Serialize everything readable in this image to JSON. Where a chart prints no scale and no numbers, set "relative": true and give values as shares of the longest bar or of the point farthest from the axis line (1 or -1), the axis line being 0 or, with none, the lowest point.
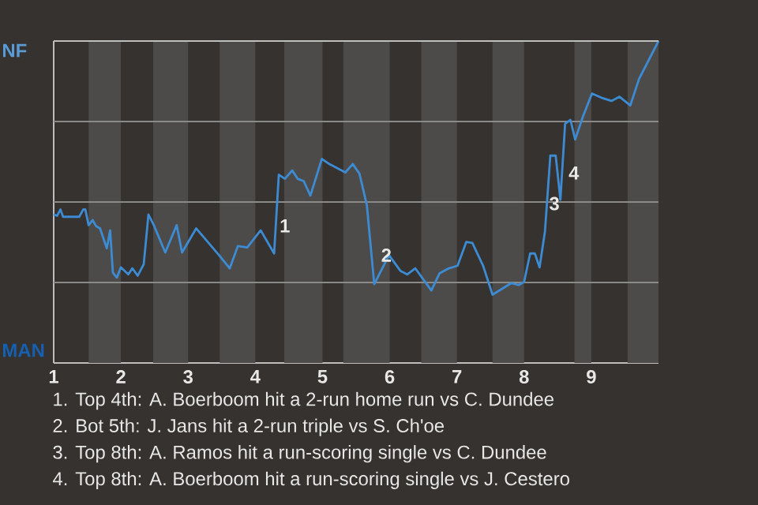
{
  "chart_data": {
    "type": "line",
    "relative": true,
    "x": [
      1,
      1.05,
      1.1,
      1.14,
      1.38,
      1.44,
      1.47,
      1.52,
      1.58,
      1.63,
      1.69,
      1.79,
      1.84,
      1.88,
      1.94,
      2,
      2.11,
      2.17,
      2.25,
      2.34,
      2.41,
      2.49,
      2.66,
      2.83,
      2.91,
      3.12,
      3.46,
      3.62,
      3.74,
      3.88,
      4.08,
      4.18,
      4.28,
      4.35,
      4.44,
      4.55,
      4.63,
      4.72,
      4.82,
      4.99,
      5.1,
      5.34,
      5.45,
      5.55,
      5.66,
      5.77,
      5.87,
      5.99,
      6.16,
      6.26,
      6.38,
      6.62,
      6.74,
      6.88,
      7.01,
      7.14,
      7.23,
      7.39,
      7.53,
      7.81,
      7.92,
      8,
      8.09,
      8.16,
      8.23,
      8.31,
      8.39,
      8.47,
      8.54,
      8.61,
      8.69,
      8.76,
      8.88,
      9.01,
      9.15,
      9.3,
      9.42,
      9.58,
      9.71,
      10
    ],
    "values": [
      0.461,
      0.457,
      0.477,
      0.454,
      0.454,
      0.477,
      0.477,
      0.428,
      0.444,
      0.425,
      0.418,
      0.356,
      0.412,
      0.281,
      0.265,
      0.297,
      0.275,
      0.294,
      0.271,
      0.307,
      0.461,
      0.428,
      0.343,
      0.428,
      0.343,
      0.418,
      0.335,
      0.294,
      0.363,
      0.359,
      0.412,
      0.376,
      0.34,
      0.585,
      0.572,
      0.598,
      0.572,
      0.565,
      0.52,
      0.634,
      0.618,
      0.592,
      0.618,
      0.588,
      0.49,
      0.245,
      0.286,
      0.335,
      0.286,
      0.275,
      0.294,
      0.225,
      0.278,
      0.294,
      0.302,
      0.376,
      0.373,
      0.302,
      0.212,
      0.248,
      0.242,
      0.252,
      0.34,
      0.34,
      0.297,
      0.408,
      0.644,
      0.644,
      0.507,
      0.743,
      0.755,
      0.694,
      0.768,
      0.837,
      0.824,
      0.814,
      0.827,
      0.8,
      0.882,
      1
    ],
    "color": "#3d8bd3",
    "line_style": "solid",
    "marker": "none",
    "xlim": [
      1,
      10
    ],
    "xticks": [
      1,
      2,
      3,
      4,
      5,
      6,
      7,
      8,
      9
    ],
    "bands": [
      {
        "axis": "x",
        "from": 1.52,
        "to": 2,
        "color": "#4d4b49"
      },
      {
        "axis": "x",
        "from": 2.48,
        "to": 3,
        "color": "#4d4b49"
      },
      {
        "axis": "x",
        "from": 3.47,
        "to": 4,
        "color": "#4d4b49"
      },
      {
        "axis": "x",
        "from": 4.43,
        "to": 5,
        "color": "#4d4b49"
      },
      {
        "axis": "x",
        "from": 5.31,
        "to": 6,
        "color": "#4d4b49"
      },
      {
        "axis": "x",
        "from": 6.47,
        "to": 7,
        "color": "#4d4b49"
      },
      {
        "axis": "x",
        "from": 7.53,
        "to": 8,
        "color": "#4d4b49"
      },
      {
        "axis": "x",
        "from": 8.75,
        "to": 9,
        "color": "#4d4b49"
      },
      {
        "axis": "x",
        "from": 9.54,
        "to": 10,
        "color": "#4d4b49"
      }
    ],
    "ref_lines": [
      {
        "axis": "y",
        "value": 0.25,
        "color": "#8a8a88"
      },
      {
        "axis": "y",
        "value": 0.5,
        "color": "#8a8a88"
      },
      {
        "axis": "y",
        "value": 0.75,
        "color": "#8a8a88"
      }
    ],
    "annotations": [
      {
        "text": "1",
        "x": 4.44,
        "y": 0.426
      },
      {
        "text": "2",
        "x": 5.95,
        "y": 0.335
      },
      {
        "text": "3",
        "x": 8.45,
        "y": 0.495
      },
      {
        "text": "4",
        "x": 8.74,
        "y": 0.59
      },
      "NF",
      "MAN",
      "1. Top 4th: A. Boerboom hit a 2-run home run vs C. Dundee",
      "2. Bot 5th: J. Jans hit a 2-run triple vs S. Ch'oe",
      "3. Top 8th: A. Ramos hit a run-scoring single vs C. Dundee",
      "4. Top 8th: A. Boerboom hit a run-scoring single vs J. Cestero"
    ]
  }
}
